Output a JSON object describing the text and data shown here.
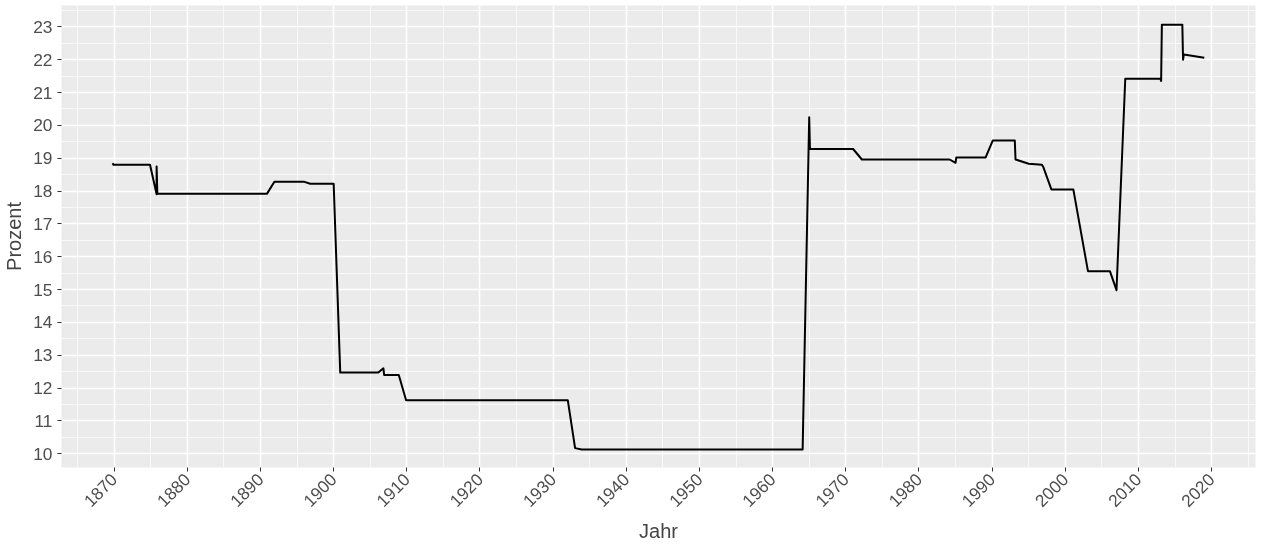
{
  "chart_data": {
    "type": "line",
    "xlabel": "Jahr",
    "ylabel": "Prozent",
    "x": [
      1869.8,
      1869.9,
      1874.9,
      1875.8,
      1875.8,
      1875.9,
      1890.9,
      1891.9,
      1896.0,
      1896.8,
      1900.0,
      1900.9,
      1906.1,
      1906.8,
      1906.9,
      1908.9,
      1909.9,
      1932.0,
      1933.0,
      1933.9,
      1964.1,
      1965.0,
      1965.1,
      1971.0,
      1972.2,
      1984.2,
      1985.0,
      1985.1,
      1989.1,
      1990.1,
      1993.1,
      1993.2,
      1995.0,
      1996.8,
      1997.0,
      1998.1,
      2001.1,
      2003.1,
      2006.1,
      2007.0,
      2008.2,
      2013.0,
      2013.1,
      2013.2,
      2016.0,
      2016.1,
      2016.2,
      2019.0
    ],
    "series": [
      {
        "color": "#000000",
        "values": [
          18.85,
          18.8,
          18.8,
          17.9,
          18.75,
          17.92,
          17.92,
          18.28,
          18.28,
          18.22,
          18.22,
          12.47,
          12.47,
          12.6,
          12.4,
          12.4,
          11.63,
          11.63,
          10.17,
          10.13,
          10.13,
          20.25,
          19.28,
          19.28,
          18.96,
          18.96,
          18.86,
          19.02,
          19.02,
          19.54,
          19.54,
          18.96,
          18.83,
          18.8,
          18.73,
          18.05,
          18.05,
          15.56,
          15.56,
          14.98,
          21.42,
          21.42,
          21.35,
          23.06,
          23.06,
          22.0,
          22.16,
          22.06
        ]
      }
    ],
    "xlim": [
      1862.8,
      2026
    ],
    "ylim": [
      9.58,
      23.65
    ],
    "xticks": [
      1870,
      1880,
      1890,
      1900,
      1910,
      1920,
      1930,
      1940,
      1950,
      1960,
      1970,
      1980,
      1990,
      2000,
      2010,
      2020
    ],
    "yticks": [
      10,
      11,
      12,
      13,
      14,
      15,
      16,
      17,
      18,
      19,
      20,
      21,
      22,
      23
    ],
    "grid": true,
    "marker": "none",
    "line_style": "solid"
  }
}
